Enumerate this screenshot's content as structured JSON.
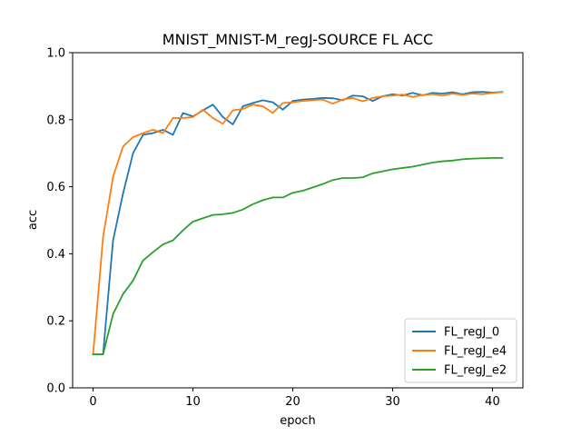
{
  "chart_data": {
    "type": "line",
    "title": "MNIST_MNIST-M_regJ-SOURCE FL ACC",
    "xlabel": "epoch",
    "ylabel": "acc",
    "xlim": [
      -2.05,
      43.05
    ],
    "ylim": [
      0.0,
      1.0
    ],
    "xticks": [
      0,
      10,
      20,
      30,
      40
    ],
    "yticks": [
      0.0,
      0.2,
      0.4,
      0.6,
      0.8,
      1.0
    ],
    "grid": false,
    "legend": "lower-right",
    "x": [
      0,
      1,
      2,
      3,
      4,
      5,
      6,
      7,
      8,
      9,
      10,
      11,
      12,
      13,
      14,
      15,
      16,
      17,
      18,
      19,
      20,
      21,
      22,
      23,
      24,
      25,
      26,
      27,
      28,
      29,
      30,
      31,
      32,
      33,
      34,
      35,
      36,
      37,
      38,
      39,
      40,
      41
    ],
    "series": [
      {
        "name": "FL_regJ_0",
        "color": "#1f77b4",
        "values": [
          0.1,
          0.1,
          0.44,
          0.58,
          0.7,
          0.755,
          0.76,
          0.77,
          0.755,
          0.82,
          0.81,
          0.828,
          0.845,
          0.808,
          0.786,
          0.84,
          0.85,
          0.858,
          0.852,
          0.83,
          0.856,
          0.86,
          0.862,
          0.865,
          0.864,
          0.858,
          0.872,
          0.87,
          0.856,
          0.87,
          0.876,
          0.872,
          0.88,
          0.873,
          0.88,
          0.878,
          0.882,
          0.876,
          0.882,
          0.883,
          0.881,
          0.883
        ]
      },
      {
        "name": "FL_regJ_e4",
        "color": "#ff7f0e",
        "values": [
          0.1,
          0.45,
          0.63,
          0.72,
          0.748,
          0.76,
          0.77,
          0.76,
          0.805,
          0.805,
          0.808,
          0.83,
          0.805,
          0.788,
          0.828,
          0.832,
          0.845,
          0.84,
          0.82,
          0.85,
          0.852,
          0.856,
          0.858,
          0.86,
          0.848,
          0.86,
          0.865,
          0.855,
          0.865,
          0.87,
          0.872,
          0.875,
          0.868,
          0.874,
          0.876,
          0.872,
          0.878,
          0.874,
          0.878,
          0.876,
          0.88,
          0.882
        ]
      },
      {
        "name": "FL_regJ_e2",
        "color": "#2ca02c",
        "values": [
          0.1,
          0.1,
          0.22,
          0.28,
          0.32,
          0.38,
          0.405,
          0.428,
          0.44,
          0.47,
          0.496,
          0.506,
          0.516,
          0.518,
          0.522,
          0.532,
          0.548,
          0.56,
          0.568,
          0.568,
          0.582,
          0.588,
          0.598,
          0.608,
          0.62,
          0.626,
          0.626,
          0.628,
          0.64,
          0.646,
          0.652,
          0.656,
          0.66,
          0.666,
          0.672,
          0.676,
          0.678,
          0.682,
          0.684,
          0.685,
          0.686,
          0.686
        ]
      }
    ]
  }
}
